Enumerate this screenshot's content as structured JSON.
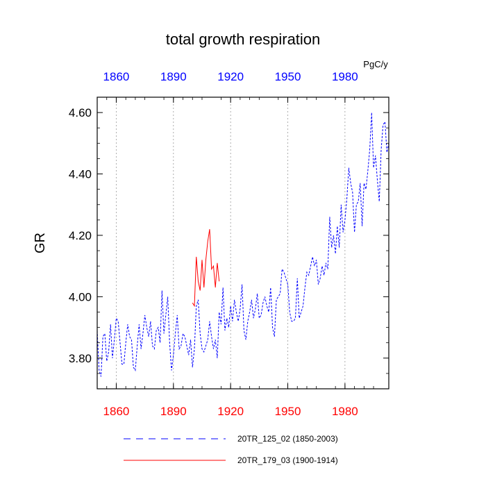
{
  "chart_data": {
    "type": "line",
    "title": "total growth respiration",
    "units": "PgC/y",
    "ylabel": "GR",
    "xlabel": "",
    "xlim": [
      1850,
      2003
    ],
    "ylim": [
      3.7,
      4.65
    ],
    "x_ticks": [
      1860,
      1890,
      1920,
      1950,
      1980
    ],
    "x_tick_labels": [
      "1860",
      "1890",
      "1920",
      "1950",
      "1980"
    ],
    "y_ticks": [
      3.8,
      4.0,
      4.2,
      4.4,
      4.6
    ],
    "y_tick_labels": [
      "3.80",
      "4.00",
      "4.20",
      "4.40",
      "4.60"
    ],
    "grid": "vertical-dotted",
    "legend_position": "bottom",
    "series": [
      {
        "name": "20TR_125_02 (1850-2003)",
        "color": "#0000ff",
        "style": "dashed",
        "x": [
          1850,
          1851,
          1852,
          1853,
          1854,
          1855,
          1856,
          1857,
          1858,
          1859,
          1860,
          1861,
          1862,
          1863,
          1864,
          1865,
          1866,
          1867,
          1868,
          1869,
          1870,
          1871,
          1872,
          1873,
          1874,
          1875,
          1876,
          1877,
          1878,
          1879,
          1880,
          1881,
          1882,
          1883,
          1884,
          1885,
          1886,
          1887,
          1888,
          1889,
          1890,
          1891,
          1892,
          1893,
          1894,
          1895,
          1896,
          1897,
          1898,
          1899,
          1900,
          1901,
          1902,
          1903,
          1904,
          1905,
          1906,
          1907,
          1908,
          1909,
          1910,
          1911,
          1912,
          1913,
          1914,
          1915,
          1916,
          1917,
          1918,
          1919,
          1920,
          1921,
          1922,
          1923,
          1924,
          1925,
          1926,
          1927,
          1928,
          1929,
          1930,
          1931,
          1932,
          1933,
          1934,
          1935,
          1936,
          1937,
          1938,
          1939,
          1940,
          1941,
          1942,
          1943,
          1944,
          1945,
          1946,
          1947,
          1948,
          1949,
          1950,
          1951,
          1952,
          1953,
          1954,
          1955,
          1956,
          1957,
          1958,
          1959,
          1960,
          1961,
          1962,
          1963,
          1964,
          1965,
          1966,
          1967,
          1968,
          1969,
          1970,
          1971,
          1972,
          1973,
          1974,
          1975,
          1976,
          1977,
          1978,
          1979,
          1980,
          1981,
          1982,
          1983,
          1984,
          1985,
          1986,
          1987,
          1988,
          1989,
          1990,
          1991,
          1992,
          1993,
          1994,
          1995,
          1996,
          1997,
          1998,
          1999,
          2000,
          2001,
          2002,
          2003
        ],
        "values": [
          3.89,
          3.76,
          3.74,
          3.87,
          3.88,
          3.79,
          3.82,
          3.91,
          3.8,
          3.86,
          3.93,
          3.92,
          3.85,
          3.78,
          3.78,
          3.85,
          3.91,
          3.87,
          3.86,
          3.77,
          3.76,
          3.84,
          3.91,
          3.83,
          3.88,
          3.94,
          3.9,
          3.87,
          3.92,
          3.84,
          3.83,
          3.89,
          3.9,
          3.85,
          4.02,
          3.88,
          3.94,
          4.0,
          3.85,
          3.76,
          3.81,
          3.88,
          3.94,
          3.83,
          3.84,
          3.88,
          3.87,
          3.84,
          3.81,
          3.86,
          3.77,
          3.83,
          3.97,
          3.99,
          3.88,
          3.83,
          3.82,
          3.84,
          3.86,
          3.92,
          3.87,
          3.83,
          3.86,
          3.8,
          3.95,
          3.91,
          4.03,
          3.89,
          3.93,
          3.9,
          3.97,
          3.92,
          3.99,
          3.95,
          3.92,
          3.96,
          4.04,
          3.89,
          3.86,
          3.92,
          3.95,
          3.99,
          3.93,
          3.96,
          4.01,
          3.93,
          3.94,
          3.98,
          4.0,
          3.97,
          3.95,
          4.03,
          3.9,
          3.87,
          3.99,
          4.0,
          4.01,
          4.09,
          4.08,
          4.06,
          4.04,
          3.95,
          3.92,
          3.92,
          3.93,
          4.06,
          3.93,
          3.95,
          3.97,
          4.03,
          4.08,
          4.07,
          4.1,
          4.13,
          4.1,
          4.12,
          4.04,
          4.06,
          4.1,
          4.07,
          4.11,
          4.09,
          4.26,
          4.16,
          4.2,
          4.14,
          4.23,
          4.16,
          4.3,
          4.21,
          4.25,
          4.32,
          4.42,
          4.37,
          4.34,
          4.21,
          4.3,
          4.31,
          4.37,
          4.23,
          4.37,
          4.35,
          4.41,
          4.48,
          4.6,
          4.42,
          4.46,
          4.38,
          4.31,
          4.48,
          4.56,
          4.57,
          4.47,
          4.5
        ]
      },
      {
        "name": "20TR_179_03 (1900-1914)",
        "color": "#ff0000",
        "style": "solid",
        "x": [
          1900,
          1901,
          1902,
          1903,
          1904,
          1905,
          1906,
          1907,
          1908,
          1909,
          1910,
          1911,
          1912,
          1913,
          1914
        ],
        "values": [
          3.98,
          3.97,
          4.13,
          4.05,
          4.02,
          4.12,
          4.03,
          4.12,
          4.18,
          4.22,
          4.09,
          4.1,
          4.03,
          4.11,
          4.05
        ]
      }
    ]
  }
}
